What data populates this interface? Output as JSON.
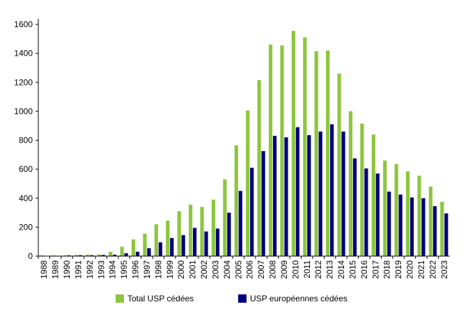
{
  "chart_data": {
    "type": "bar",
    "categories": [
      "1988",
      "1989",
      "1990",
      "1991",
      "1992",
      "1993",
      "1994",
      "1995",
      "1996",
      "1997",
      "1998",
      "1999",
      "2000",
      "2001",
      "2002",
      "2003",
      "2004",
      "2005",
      "2006",
      "2007",
      "2008",
      "2009",
      "2010",
      "2011",
      "2012",
      "2013",
      "2014",
      "2015",
      "2016",
      "2017",
      "2018",
      "2019",
      "2020",
      "2021",
      "2022",
      "2023"
    ],
    "series": [
      {
        "name": "Total USP cédées",
        "color": "#8dc63f",
        "values": [
          5,
          5,
          5,
          8,
          10,
          12,
          30,
          65,
          115,
          155,
          220,
          245,
          310,
          355,
          340,
          390,
          530,
          765,
          1005,
          1215,
          1460,
          1455,
          1555,
          1510,
          1415,
          1420,
          1260,
          1000,
          915,
          840,
          660,
          635,
          585,
          555,
          480,
          375
        ]
      },
      {
        "name": "USP européennes cédées",
        "color": "#000080",
        "values": [
          1,
          1,
          5,
          6,
          6,
          8,
          10,
          20,
          30,
          55,
          95,
          125,
          145,
          195,
          170,
          190,
          300,
          450,
          610,
          725,
          830,
          820,
          890,
          835,
          860,
          910,
          860,
          675,
          605,
          570,
          445,
          425,
          405,
          400,
          345,
          295
        ]
      }
    ],
    "ylim": [
      0,
      1600
    ],
    "yticks": [
      0,
      200,
      400,
      600,
      800,
      1000,
      1200,
      1400,
      1600
    ],
    "grid": false,
    "legend_position": "bottom"
  }
}
